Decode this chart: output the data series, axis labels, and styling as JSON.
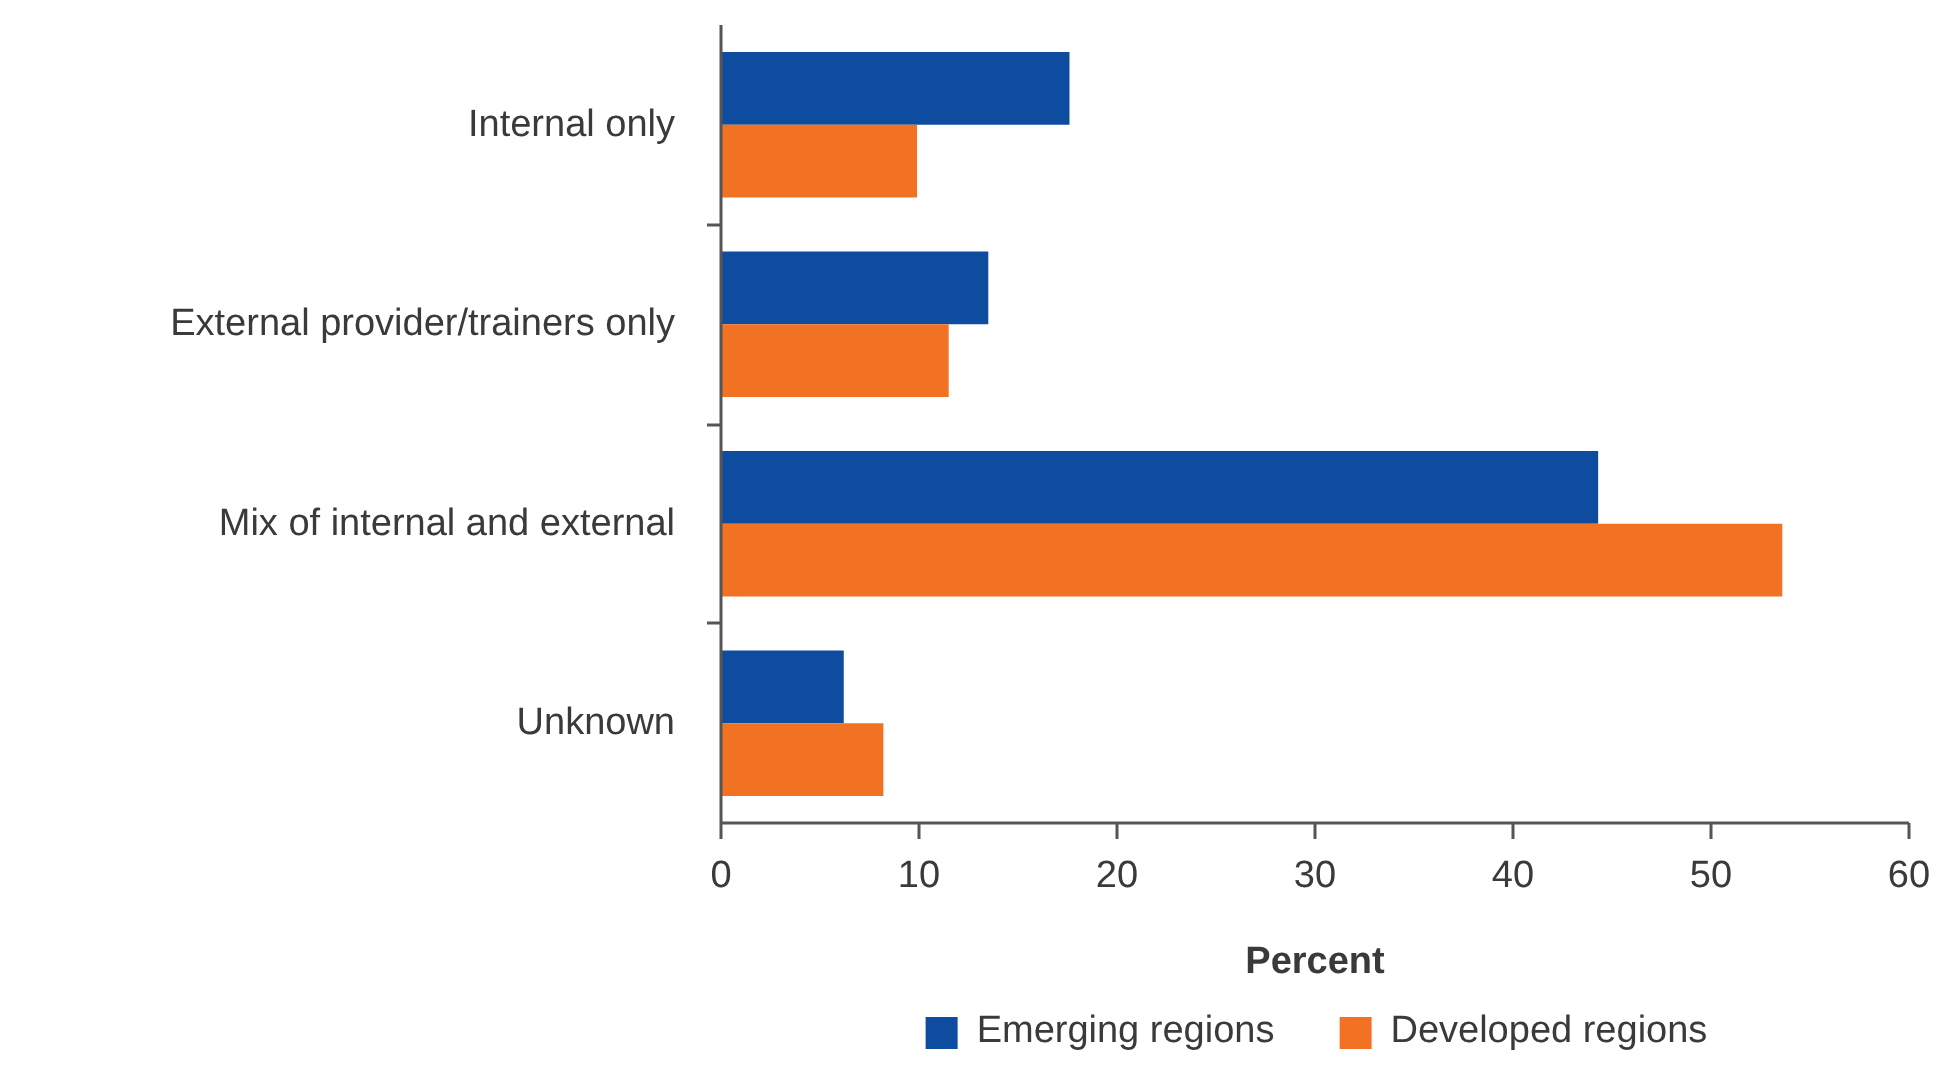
{
  "chart_data": {
    "type": "bar",
    "orientation": "horizontal",
    "xlabel": "Percent",
    "categories": [
      "Internal only",
      "External provider/trainers only",
      "Mix of internal and external",
      "Unknown"
    ],
    "series": [
      {
        "name": "Emerging regions",
        "color": "#0d4c9f",
        "values": [
          17.6,
          13.5,
          44.3,
          6.2
        ]
      },
      {
        "name": "Developed regions",
        "color": "#f27223",
        "values": [
          9.9,
          11.5,
          53.6,
          8.2
        ]
      }
    ],
    "xlim": [
      0,
      60
    ],
    "xticks": [
      0,
      10,
      20,
      30,
      40,
      50,
      60
    ],
    "grid": false,
    "legend": "bottom"
  }
}
